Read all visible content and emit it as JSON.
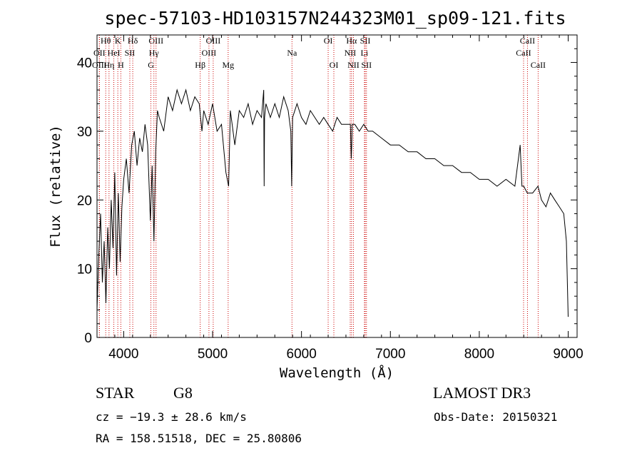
{
  "chart_data": {
    "type": "line",
    "title": "spec-57103-HD103157N244323M01_sp09-121.fits",
    "xlabel": "Wavelength (Å)",
    "ylabel": "Flux (relative)",
    "xlim": [
      3700,
      9100
    ],
    "ylim": [
      0,
      44
    ],
    "xticks": [
      4000,
      5000,
      6000,
      7000,
      8000,
      9000
    ],
    "yticks": [
      0,
      10,
      20,
      30,
      40
    ],
    "series": [
      {
        "name": "flux",
        "x": [
          3700,
          3720,
          3740,
          3760,
          3780,
          3800,
          3820,
          3840,
          3860,
          3880,
          3900,
          3920,
          3940,
          3960,
          3980,
          4000,
          4030,
          4060,
          4090,
          4120,
          4150,
          4180,
          4210,
          4240,
          4270,
          4300,
          4320,
          4340,
          4360,
          4380,
          4400,
          4450,
          4500,
          4550,
          4600,
          4650,
          4700,
          4750,
          4800,
          4850,
          4880,
          4900,
          4950,
          5000,
          5050,
          5100,
          5150,
          5180,
          5200,
          5250,
          5300,
          5350,
          5400,
          5450,
          5500,
          5550,
          5575,
          5580,
          5585,
          5600,
          5650,
          5700,
          5750,
          5800,
          5850,
          5880,
          5890,
          5900,
          5950,
          6000,
          6050,
          6100,
          6150,
          6200,
          6250,
          6300,
          6350,
          6400,
          6450,
          6500,
          6550,
          6560,
          6565,
          6570,
          6600,
          6650,
          6700,
          6750,
          6800,
          6900,
          7000,
          7100,
          7200,
          7300,
          7400,
          7500,
          7600,
          7700,
          7800,
          7900,
          8000,
          8100,
          8200,
          8300,
          8400,
          8460,
          8480,
          8500,
          8540,
          8600,
          8660,
          8700,
          8750,
          8800,
          8850,
          8900,
          8950,
          8980,
          9000
        ],
        "values": [
          4,
          12,
          18,
          8,
          14,
          5,
          16,
          10,
          20,
          13,
          24,
          9,
          21,
          11,
          19,
          23,
          26,
          21,
          28,
          30,
          25,
          29,
          27,
          31,
          28,
          17,
          25,
          14,
          27,
          33,
          32,
          30,
          35,
          33,
          36,
          34,
          36,
          33,
          35,
          34,
          30,
          33,
          31,
          34,
          30,
          31,
          24,
          22,
          33,
          28,
          33,
          32,
          34,
          31,
          33,
          32,
          36,
          22,
          32,
          34,
          32,
          34,
          32,
          35,
          33,
          30,
          22,
          32,
          34,
          32,
          31,
          33,
          32,
          31,
          32,
          31,
          30,
          32,
          31,
          31,
          31,
          26,
          28,
          31,
          31,
          30,
          31,
          30,
          30,
          29,
          28,
          28,
          27,
          27,
          26,
          26,
          25,
          25,
          24,
          24,
          23,
          23,
          22,
          23,
          22,
          28,
          22,
          22,
          21,
          21,
          22,
          20,
          19,
          21,
          20,
          19,
          18,
          14,
          3
        ]
      }
    ],
    "spectral_lines": [
      {
        "label": "Hθ",
        "wavelength": 3798,
        "row": 0
      },
      {
        "label": "K",
        "wavelength": 3934,
        "row": 0
      },
      {
        "label": "Hδ",
        "wavelength": 4102,
        "row": 0
      },
      {
        "label": "OIII",
        "wavelength": 4364,
        "row": 0
      },
      {
        "label": "OIII",
        "wavelength": 5007,
        "row": 0
      },
      {
        "label": "OI",
        "wavelength": 6300,
        "row": 0
      },
      {
        "label": "Hα",
        "wavelength": 6563,
        "row": 0
      },
      {
        "label": "SII",
        "wavelength": 6717,
        "row": 0
      },
      {
        "label": "CaII",
        "wavelength": 8542,
        "row": 0
      },
      {
        "label": "OII",
        "wavelength": 3727,
        "row": 1
      },
      {
        "label": "HeI",
        "wavelength": 3889,
        "row": 1
      },
      {
        "label": "SII",
        "wavelength": 4069,
        "row": 1
      },
      {
        "label": "Hγ",
        "wavelength": 4340,
        "row": 1
      },
      {
        "label": "OIII",
        "wavelength": 4959,
        "row": 1
      },
      {
        "label": "Na",
        "wavelength": 5893,
        "row": 1
      },
      {
        "label": "NII",
        "wavelength": 6548,
        "row": 1
      },
      {
        "label": "Li",
        "wavelength": 6708,
        "row": 1
      },
      {
        "label": "CaII",
        "wavelength": 8498,
        "row": 1
      },
      {
        "label": "OIII",
        "wavelength": 3727,
        "row": 2
      },
      {
        "label": "Hη",
        "wavelength": 3835,
        "row": 2
      },
      {
        "label": "H",
        "wavelength": 3968,
        "row": 2
      },
      {
        "label": "G",
        "wavelength": 4306,
        "row": 2
      },
      {
        "label": "Hβ",
        "wavelength": 4861,
        "row": 2
      },
      {
        "label": "Mg",
        "wavelength": 5175,
        "row": 2
      },
      {
        "label": "OI",
        "wavelength": 6364,
        "row": 2
      },
      {
        "label": "NII",
        "wavelength": 6584,
        "row": 2
      },
      {
        "label": "SII",
        "wavelength": 6731,
        "row": 2
      },
      {
        "label": "CaII",
        "wavelength": 8662,
        "row": 2
      }
    ],
    "line_color": "#cc0000"
  },
  "info": {
    "object_class": "STAR",
    "subclass": "G8",
    "survey": "LAMOST DR3",
    "cz": "cz = −19.3 ± 28.6 km/s",
    "obs_date": "Obs-Date: 20150321",
    "coords": "RA = 158.51518, DEC =  25.80806"
  }
}
